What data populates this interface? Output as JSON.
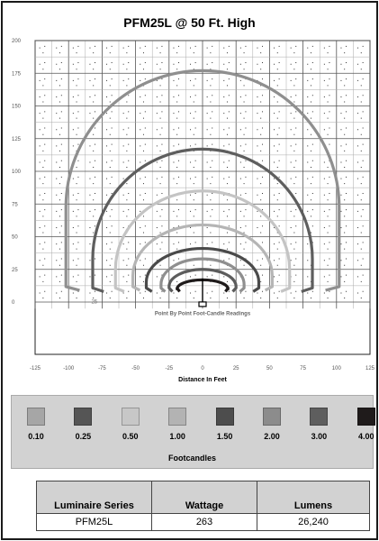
{
  "chart_data": {
    "type": "isoline",
    "title": "PFM25L @ 50 Ft. High",
    "xlabel": "Distance In Feet",
    "ylabel": "",
    "annotation": "Point By Point Foot-Candle Readings",
    "xlim": [
      -125,
      125
    ],
    "ylim": [
      -40,
      200
    ],
    "x_ticks": [
      "-125",
      "-100",
      "-75",
      "-50",
      "-25",
      "0",
      "25",
      "50",
      "75",
      "100",
      "125"
    ],
    "y_ticks": [
      "0",
      "25",
      "50",
      "75",
      "100",
      "125",
      "150",
      "175",
      "200"
    ],
    "grid": true,
    "origin_label": "- 25",
    "series": [
      {
        "name": "0.10",
        "half_width": 102,
        "top": 177,
        "bottom": 9,
        "color": "#8f8f8f"
      },
      {
        "name": "0.25",
        "half_width": 82,
        "top": 117,
        "bottom": 8,
        "color": "#5e5e5e"
      },
      {
        "name": "0.50",
        "half_width": 65,
        "top": 85,
        "bottom": 8,
        "color": "#c4c4c4"
      },
      {
        "name": "1.00",
        "half_width": 52,
        "top": 59,
        "bottom": 9,
        "color": "#b5b5b5"
      },
      {
        "name": "1.50",
        "half_width": 42,
        "top": 41,
        "bottom": 8,
        "color": "#4a4a4a"
      },
      {
        "name": "2.00",
        "half_width": 31,
        "top": 33,
        "bottom": 8,
        "color": "#8f8f8f"
      },
      {
        "name": "3.00",
        "half_width": 25,
        "top": 25,
        "bottom": 8,
        "color": "#5c5c5c"
      },
      {
        "name": "4.00",
        "half_width": 19,
        "top": 17,
        "bottom": 8,
        "color": "#1f1b1b"
      }
    ]
  },
  "legend": {
    "title": "Footcandles",
    "items": [
      {
        "label": "0.10",
        "color": "#a6a6a6"
      },
      {
        "label": "0.25",
        "color": "#555555"
      },
      {
        "label": "0.50",
        "color": "#c7c7c7"
      },
      {
        "label": "1.00",
        "color": "#b3b3b3"
      },
      {
        "label": "1.50",
        "color": "#4d4d4d"
      },
      {
        "label": "2.00",
        "color": "#8c8c8c"
      },
      {
        "label": "3.00",
        "color": "#5e5e5e"
      },
      {
        "label": "4.00",
        "color": "#1f1b1b"
      }
    ]
  },
  "spec_table": {
    "headers": [
      "Luminaire Series",
      "Wattage",
      "Lumens"
    ],
    "rows": [
      [
        "PFM25L",
        "263",
        "26,240"
      ]
    ]
  }
}
